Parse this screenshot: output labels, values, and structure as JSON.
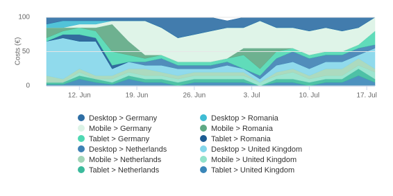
{
  "chart_data": {
    "type": "area",
    "stacking": "normal",
    "y_label": "Costs (€)",
    "x": [
      "8. Jun",
      "10. Jun",
      "12. Jun",
      "14. Jun",
      "16. Jun",
      "18. Jun",
      "20. Jun",
      "22. Jun",
      "24. Jun",
      "26. Jun",
      "28. Jun",
      "30. Jun",
      "2. Jul",
      "4. Jul",
      "6. Jul",
      "8. Jul",
      "10. Jul",
      "12. Jul",
      "14. Jul",
      "16. Jul",
      "18. Jul"
    ],
    "xlim": [
      "8. Jun",
      "18. Jul"
    ],
    "xticks": [
      "12. Jun",
      "19. Jun",
      "26. Jun",
      "3. Jul",
      "10. Jul",
      "17. Jul"
    ],
    "ylim": [
      0,
      100
    ],
    "yticks": [
      0,
      50,
      100
    ],
    "grid": true,
    "series": [
      {
        "name": "Desktop > Germany",
        "color": "#2e6ea4",
        "values": [
          10,
          5,
          5,
          5,
          5,
          5,
          5,
          15,
          30,
          25,
          20,
          10,
          15,
          5,
          15,
          15,
          20,
          15,
          20,
          15,
          0
        ]
      },
      {
        "name": "Desktop > Romania",
        "color": "#3fbcd4",
        "values": [
          5,
          10,
          5,
          5,
          0,
          0,
          0,
          0,
          0,
          0,
          0,
          0,
          0,
          0,
          0,
          0,
          0,
          0,
          0,
          0,
          0
        ]
      },
      {
        "name": "Mobile > Germany",
        "color": "#dcf3e6",
        "values": [
          0,
          0,
          5,
          5,
          5,
          30,
          50,
          40,
          35,
          40,
          45,
          45,
          30,
          40,
          30,
          30,
          35,
          35,
          30,
          25,
          20
        ]
      },
      {
        "name": "Mobile > Romania",
        "color": "#5ea884",
        "values": [
          15,
          5,
          0,
          5,
          40,
          20,
          5,
          0,
          0,
          0,
          0,
          0,
          10,
          30,
          5,
          0,
          0,
          0,
          0,
          0,
          0
        ]
      },
      {
        "name": "Tablet > Germany",
        "color": "#4fd8b2",
        "values": [
          5,
          5,
          10,
          10,
          20,
          10,
          5,
          5,
          5,
          5,
          5,
          5,
          20,
          10,
          10,
          5,
          5,
          5,
          5,
          5,
          20
        ]
      },
      {
        "name": "Tablet > Romania",
        "color": "#1d5b92",
        "values": [
          0,
          5,
          10,
          5,
          5,
          0,
          0,
          0,
          0,
          0,
          0,
          0,
          0,
          0,
          0,
          0,
          0,
          0,
          0,
          0,
          0
        ]
      },
      {
        "name": "Desktop > Netherlands",
        "color": "#3e81b4",
        "values": [
          0,
          0,
          0,
          0,
          0,
          0,
          5,
          10,
          5,
          5,
          5,
          5,
          0,
          5,
          10,
          15,
          15,
          10,
          10,
          10,
          5
        ]
      },
      {
        "name": "Desktop > United Kingdom",
        "color": "#84d6ea",
        "values": [
          50,
          60,
          40,
          50,
          10,
          10,
          5,
          10,
          10,
          5,
          5,
          10,
          5,
          5,
          10,
          10,
          10,
          10,
          10,
          5,
          30
        ]
      },
      {
        "name": "Mobile > Netherlands",
        "color": "#a3d6b8",
        "values": [
          10,
          5,
          5,
          5,
          5,
          5,
          10,
          5,
          5,
          5,
          5,
          5,
          5,
          0,
          5,
          5,
          5,
          10,
          10,
          10,
          5
        ]
      },
      {
        "name": "Mobile > United Kingdom",
        "color": "#92e2cb",
        "values": [
          0,
          0,
          5,
          0,
          5,
          5,
          5,
          5,
          5,
          5,
          5,
          5,
          5,
          5,
          5,
          10,
          5,
          5,
          5,
          5,
          10
        ]
      },
      {
        "name": "Tablet > Netherlands",
        "color": "#3bba9c",
        "values": [
          3,
          3,
          5,
          5,
          3,
          5,
          5,
          5,
          5,
          5,
          5,
          5,
          5,
          0,
          5,
          5,
          5,
          5,
          5,
          10,
          5
        ]
      },
      {
        "name": "Tablet > United Kingdom",
        "color": "#3a86b8",
        "values": [
          2,
          2,
          10,
          5,
          2,
          10,
          5,
          5,
          0,
          5,
          5,
          5,
          5,
          0,
          5,
          5,
          0,
          5,
          5,
          15,
          5
        ]
      }
    ]
  }
}
